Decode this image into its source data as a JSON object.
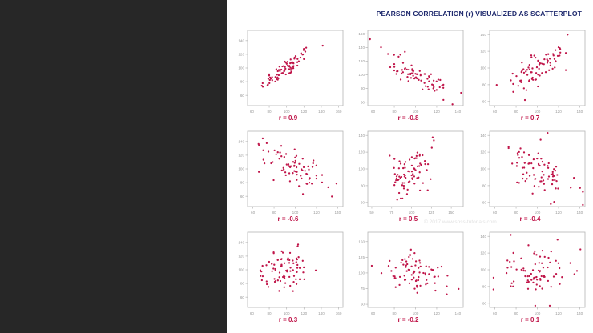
{
  "slide": {
    "title": "PEARSON CORRELATION (r) VISUALIZED AS SCATTERPLOT",
    "watermark": "© 2017 www.spss-tutorials.com"
  },
  "colors": {
    "point": "#c0164a",
    "label": "#c0164a",
    "title": "#1f2a6e",
    "axis": "#b5b5b5",
    "tick_label": "#9a9a9a"
  },
  "chart_data": [
    {
      "type": "scatter",
      "label": "r = 0.9",
      "r": 0.9,
      "xlim": [
        55,
        165
      ],
      "ylim": [
        45,
        155
      ],
      "xticks": [
        60,
        80,
        100,
        120,
        140,
        160
      ],
      "yticks": [
        60,
        80,
        100,
        120,
        140
      ],
      "n": 80
    },
    {
      "type": "scatter",
      "label": "r = -0.8",
      "r": -0.8,
      "xlim": [
        55,
        145
      ],
      "ylim": [
        55,
        165
      ],
      "xticks": [
        60,
        80,
        100,
        120,
        140
      ],
      "yticks": [
        60,
        80,
        100,
        120,
        140,
        160
      ],
      "n": 80
    },
    {
      "type": "scatter",
      "label": "r = 0.7",
      "r": 0.7,
      "xlim": [
        55,
        145
      ],
      "ylim": [
        55,
        145
      ],
      "xticks": [
        60,
        80,
        100,
        120,
        140
      ],
      "yticks": [
        60,
        80,
        100,
        120,
        140
      ],
      "n": 80
    },
    {
      "type": "scatter",
      "label": "r = -0.6",
      "r": -0.6,
      "xlim": [
        55,
        145
      ],
      "ylim": [
        45,
        155
      ],
      "xticks": [
        60,
        80,
        100,
        120,
        140
      ],
      "yticks": [
        60,
        80,
        100,
        120,
        140
      ],
      "n": 80
    },
    {
      "type": "scatter",
      "label": "r = 0.5",
      "r": 0.5,
      "xlim": [
        45,
        165
      ],
      "ylim": [
        55,
        145
      ],
      "xticks": [
        50,
        75,
        100,
        125,
        150
      ],
      "yticks": [
        60,
        80,
        100,
        120,
        140
      ],
      "n": 80
    },
    {
      "type": "scatter",
      "label": "r = -0.4",
      "r": -0.4,
      "xlim": [
        55,
        145
      ],
      "ylim": [
        55,
        145
      ],
      "xticks": [
        60,
        80,
        100,
        120,
        140
      ],
      "yticks": [
        60,
        80,
        100,
        120,
        140
      ],
      "n": 80
    },
    {
      "type": "scatter",
      "label": "r = 0.3",
      "r": 0.3,
      "xlim": [
        55,
        165
      ],
      "ylim": [
        45,
        155
      ],
      "xticks": [
        60,
        80,
        100,
        120,
        140,
        160
      ],
      "yticks": [
        60,
        80,
        100,
        120,
        140
      ],
      "n": 80
    },
    {
      "type": "scatter",
      "label": "r = -0.2",
      "r": -0.2,
      "xlim": [
        55,
        145
      ],
      "ylim": [
        45,
        165
      ],
      "xticks": [
        60,
        80,
        100,
        120,
        140
      ],
      "yticks": [
        50,
        75,
        100,
        125,
        150
      ],
      "n": 80
    },
    {
      "type": "scatter",
      "label": "r = 0.1",
      "r": 0.1,
      "xlim": [
        55,
        145
      ],
      "ylim": [
        55,
        145
      ],
      "xticks": [
        60,
        80,
        100,
        120,
        140
      ],
      "yticks": [
        60,
        80,
        100,
        120,
        140
      ],
      "n": 80
    }
  ]
}
